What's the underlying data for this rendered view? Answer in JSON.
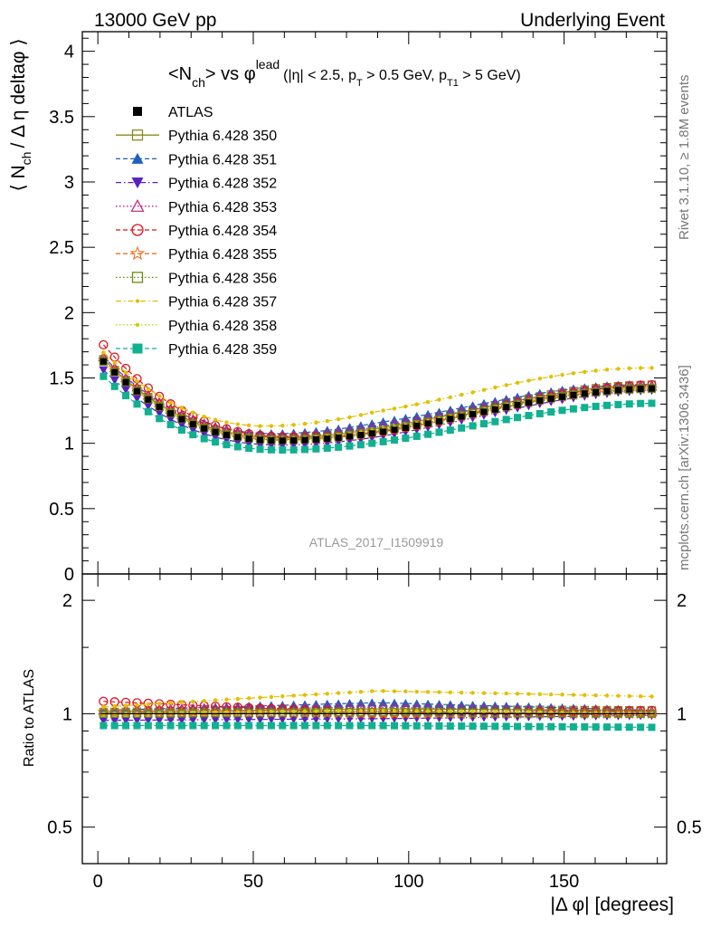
{
  "header": {
    "left": "13000 GeV pp",
    "right": "Underlying Event"
  },
  "side": {
    "rivet": "Rivet 3.1.10, ≥ 1.8M events",
    "mcplots": "mcplots.cern.ch [arXiv:1306.3436]"
  },
  "chart_data": {
    "type": "scatter",
    "title": {
      "main": "<N",
      "main_sub": "ch",
      "main_rest": "> vs φ",
      "main_sup": "lead",
      "cuts": "(|η| < 2.5, p",
      "cuts_sub1": "T",
      "cuts_mid": " > 0.5 GeV, p",
      "cuts_sub2": "T1",
      "cuts_end": " > 5 GeV)"
    },
    "analysis_label": "ATLAS_2017_I1509919",
    "xlabel": "|Δ φ| [degrees]",
    "ylabel_main": "⟨ N",
    "ylabel_main_sub": "ch",
    "ylabel_main_rest": "/ Δ η deltaφ ⟩",
    "ylabel_ratio": "Ratio to ATLAS",
    "xlim": [
      -5,
      183
    ],
    "ylim_main": [
      0,
      4.15
    ],
    "ylim_ratio": [
      0.4,
      2.35
    ],
    "yscale_ratio": "log",
    "x_ticks": [
      0,
      50,
      100,
      150
    ],
    "y_ticks_main": [
      0,
      0.5,
      1,
      1.5,
      2,
      2.5,
      3,
      3.5,
      4
    ],
    "y_ticks_main_labels": [
      "0",
      "0.5",
      "1",
      "1.5",
      "2",
      "2.5",
      "3",
      "3.5",
      "4"
    ],
    "y_ticks_ratio": [
      0.5,
      1,
      2
    ],
    "y_ticks_ratio_labels": [
      "0.5",
      "1",
      "2"
    ],
    "legend_position": "top-left",
    "reference": {
      "name": "ATLAS",
      "color": "#000000",
      "marker": "square-filled",
      "x_range": [
        1.8,
        178.2
      ],
      "n_bins": 50,
      "shape": {
        "type": "profile",
        "y0": 1.67,
        "ymin": 1.02,
        "xmin": 60,
        "y_end": 1.42
      }
    },
    "series": [
      {
        "name": "Pythia 6.428 350",
        "color": "#8a8a1e",
        "marker": "square-open",
        "line": "solid",
        "ratio": [
          1.01,
          1.03,
          1.02
        ]
      },
      {
        "name": "Pythia 6.428 351",
        "color": "#1f5fbf",
        "marker": "triangle-up-filled",
        "line": "dashed",
        "ratio": [
          1.02,
          1.07,
          1.02
        ]
      },
      {
        "name": "Pythia 6.428 352",
        "color": "#5a1fbf",
        "marker": "triangle-down-filled",
        "line": "dashdot",
        "ratio": [
          0.96,
          0.97,
          0.99
        ]
      },
      {
        "name": "Pythia 6.428 353",
        "color": "#bf1f7f",
        "marker": "triangle-up-open",
        "line": "dotted",
        "ratio": [
          1.02,
          1.04,
          1.01
        ]
      },
      {
        "name": "Pythia 6.428 354",
        "color": "#e0101a",
        "marker": "circle-open",
        "line": "dashed",
        "ratio": [
          1.08,
          1.0,
          1.02
        ]
      },
      {
        "name": "Pythia 6.428 355",
        "color": "#f07020",
        "marker": "star-open",
        "line": "dashed",
        "ratio": [
          1.01,
          1.0,
          1.0
        ]
      },
      {
        "name": "Pythia 6.428 356",
        "color": "#6a8a10",
        "marker": "square-open",
        "line": "dotted",
        "ratio": [
          1.0,
          1.01,
          1.0
        ]
      },
      {
        "name": "Pythia 6.428 357",
        "color": "#e0c000",
        "marker": "dot",
        "line": "dashdot",
        "ratio": [
          1.04,
          1.15,
          1.11
        ]
      },
      {
        "name": "Pythia 6.428 358",
        "color": "#c8d010",
        "marker": "dot",
        "line": "dotted",
        "ratio": [
          1.0,
          1.02,
          1.0
        ]
      },
      {
        "name": "Pythia 6.428 359",
        "color": "#10b090",
        "marker": "square-filled",
        "line": "dashed",
        "ratio": [
          0.93,
          0.93,
          0.92
        ]
      }
    ]
  }
}
